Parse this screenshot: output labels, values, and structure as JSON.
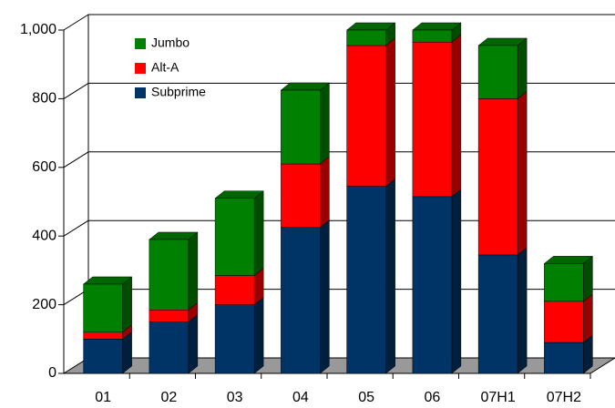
{
  "chart_data": {
    "type": "bar",
    "stacked": true,
    "categories": [
      "01",
      "02",
      "03",
      "04",
      "05",
      "06",
      "07H1",
      "07H2"
    ],
    "series": [
      {
        "name": "Subprime",
        "color": "#003366",
        "values": [
          100,
          150,
          200,
          425,
          545,
          515,
          345,
          90
        ]
      },
      {
        "name": "Alt-A",
        "color": "#ff0000",
        "values": [
          20,
          35,
          85,
          185,
          410,
          450,
          455,
          120
        ]
      },
      {
        "name": "Jumbo",
        "color": "#008000",
        "values": [
          140,
          205,
          225,
          215,
          45,
          35,
          155,
          110
        ]
      }
    ],
    "ylim": [
      0,
      1000
    ],
    "yticks": [
      0,
      200,
      400,
      600,
      800,
      {
        "value": 1000,
        "label": "1,000"
      }
    ],
    "grid": true,
    "legend": "top-left"
  }
}
